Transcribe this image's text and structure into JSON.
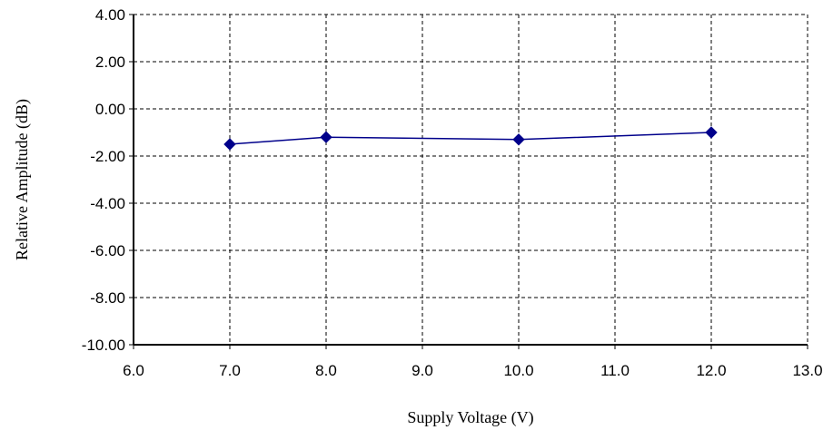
{
  "chart_data": {
    "type": "line",
    "title": "",
    "xlabel": "Supply Voltage (V)",
    "ylabel": "Relative Amplitude (dB)",
    "xlim": [
      6.0,
      13.0
    ],
    "ylim": [
      -10.0,
      4.0
    ],
    "x_ticks": [
      "6.0",
      "7.0",
      "8.0",
      "9.0",
      "10.0",
      "11.0",
      "12.0",
      "13.0"
    ],
    "y_ticks": [
      "4.00",
      "2.00",
      "0.00",
      "-2.00",
      "-4.00",
      "-6.00",
      "-8.00",
      "-10.00"
    ],
    "grid": true,
    "legend": "none",
    "series": [
      {
        "color": "#00008b",
        "marker": "diamond",
        "x": [
          7.0,
          8.0,
          10.0,
          12.0
        ],
        "y": [
          -1.5,
          -1.2,
          -1.3,
          -1.0
        ]
      }
    ]
  }
}
